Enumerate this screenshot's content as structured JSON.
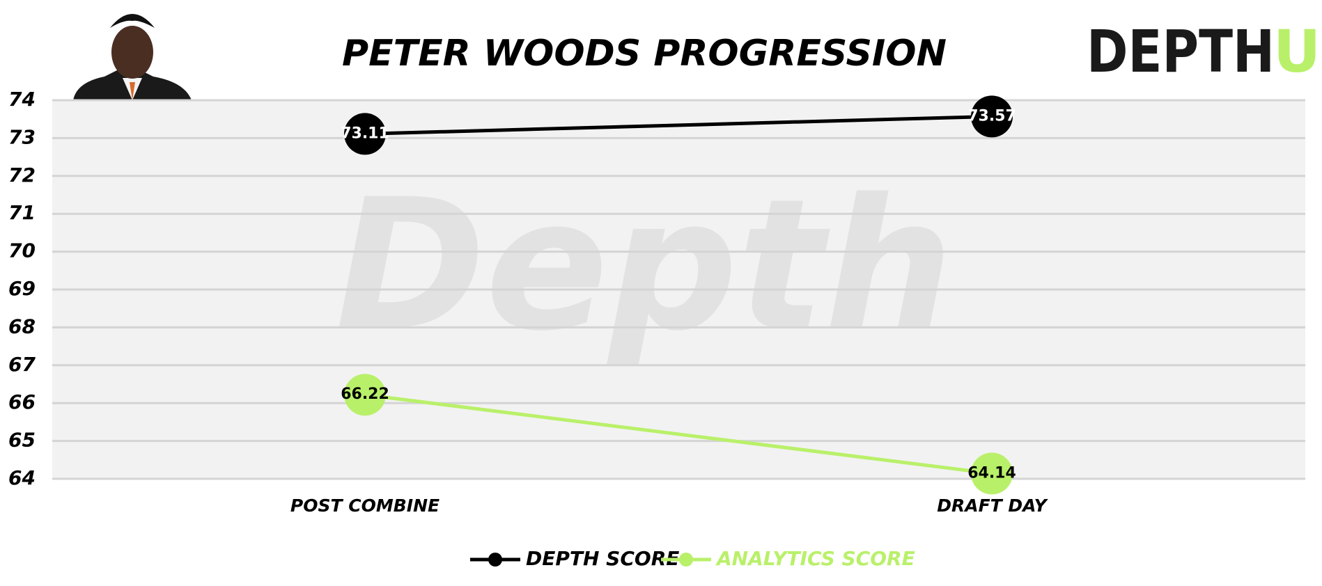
{
  "chart_data": {
    "type": "line",
    "title": "PETER WOODS PROGRESSION",
    "logo": {
      "text": "DEPTH",
      "accent": "U"
    },
    "watermark": "Depth",
    "categories": [
      "POST COMBINE",
      "DRAFT DAY"
    ],
    "series": [
      {
        "name": "DEPTH SCORE",
        "color": "#000000",
        "values": [
          73.11,
          73.57
        ]
      },
      {
        "name": "ANALYTICS SCORE",
        "color": "#b9f06a",
        "values": [
          66.22,
          64.14
        ]
      }
    ],
    "ylim": [
      64,
      74
    ],
    "yticks": [
      64,
      65,
      66,
      67,
      68,
      69,
      70,
      71,
      72,
      73,
      74
    ],
    "grid": true,
    "legend": "bottom"
  }
}
